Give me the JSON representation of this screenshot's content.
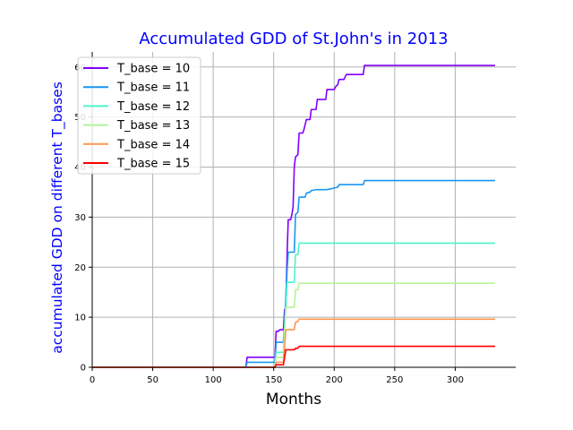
{
  "chart_data": {
    "type": "line",
    "title": "Accumulated GDD of St.John's in 2013",
    "xlabel": "Months",
    "ylabel": "accumulated GDD on different T_bases",
    "xlim": [
      0,
      350
    ],
    "ylim": [
      0,
      63
    ],
    "xticks": [
      0,
      50,
      100,
      150,
      200,
      250,
      300
    ],
    "yticks": [
      0,
      10,
      20,
      30,
      40,
      50,
      60
    ],
    "grid": true,
    "legend_position": "upper-left",
    "series": [
      {
        "name": "T_base = 10",
        "color": "#8000ff",
        "points": [
          [
            0,
            0
          ],
          [
            127,
            0
          ],
          [
            128,
            2.0
          ],
          [
            151,
            2.0
          ],
          [
            152,
            7.2
          ],
          [
            154,
            7.2
          ],
          [
            155,
            7.5
          ],
          [
            158,
            7.5
          ],
          [
            159,
            11.5
          ],
          [
            160,
            12.0
          ],
          [
            161,
            22.0
          ],
          [
            162,
            29.5
          ],
          [
            164,
            29.5
          ],
          [
            165,
            30.5
          ],
          [
            166,
            32.0
          ],
          [
            167,
            40.0
          ],
          [
            168,
            42.0
          ],
          [
            170,
            42.5
          ],
          [
            171,
            46.8
          ],
          [
            174,
            46.8
          ],
          [
            175,
            47.5
          ],
          [
            177,
            49.5
          ],
          [
            180,
            49.5
          ],
          [
            181,
            51.5
          ],
          [
            185,
            51.5
          ],
          [
            186,
            53.5
          ],
          [
            193,
            53.5
          ],
          [
            194,
            55.5
          ],
          [
            200,
            55.5
          ],
          [
            201,
            56.0
          ],
          [
            203,
            56.5
          ],
          [
            204,
            57.5
          ],
          [
            208,
            57.5
          ],
          [
            209,
            58.0
          ],
          [
            210,
            58.5
          ],
          [
            224,
            58.5
          ],
          [
            225,
            60.3
          ],
          [
            333,
            60.3
          ]
        ]
      },
      {
        "name": "T_base = 11",
        "color": "#1996f3",
        "points": [
          [
            0,
            0
          ],
          [
            127,
            0
          ],
          [
            128,
            1.0
          ],
          [
            151,
            1.0
          ],
          [
            152,
            5.0
          ],
          [
            158,
            5.0
          ],
          [
            159,
            9.0
          ],
          [
            160,
            14.0
          ],
          [
            161,
            19.0
          ],
          [
            162,
            23.0
          ],
          [
            167,
            23.0
          ],
          [
            168,
            30.5
          ],
          [
            170,
            31.0
          ],
          [
            171,
            34.0
          ],
          [
            176,
            34.0
          ],
          [
            177,
            34.8
          ],
          [
            180,
            35.0
          ],
          [
            181,
            35.3
          ],
          [
            185,
            35.5
          ],
          [
            194,
            35.5
          ],
          [
            198,
            35.7
          ],
          [
            203,
            36.0
          ],
          [
            204,
            36.5
          ],
          [
            224,
            36.5
          ],
          [
            225,
            37.3
          ],
          [
            333,
            37.3
          ]
        ]
      },
      {
        "name": "T_base = 12",
        "color": "#4df3ce",
        "points": [
          [
            0,
            0
          ],
          [
            151,
            0
          ],
          [
            152,
            3.0
          ],
          [
            158,
            3.0
          ],
          [
            159,
            8.0
          ],
          [
            160,
            12.0
          ],
          [
            161,
            17.0
          ],
          [
            167,
            17.0
          ],
          [
            168,
            22.5
          ],
          [
            170,
            22.5
          ],
          [
            171,
            24.8
          ],
          [
            333,
            24.8
          ]
        ]
      },
      {
        "name": "T_base = 13",
        "color": "#b3f396",
        "points": [
          [
            0,
            0
          ],
          [
            151,
            0
          ],
          [
            152,
            2.0
          ],
          [
            158,
            2.0
          ],
          [
            159,
            7.0
          ],
          [
            160,
            12.0
          ],
          [
            167,
            12.0
          ],
          [
            168,
            15.5
          ],
          [
            170,
            15.5
          ],
          [
            171,
            16.8
          ],
          [
            333,
            16.8
          ]
        ]
      },
      {
        "name": "T_base = 14",
        "color": "#ff964f",
        "points": [
          [
            0,
            0
          ],
          [
            151,
            0
          ],
          [
            152,
            1.0
          ],
          [
            158,
            1.0
          ],
          [
            159,
            4.0
          ],
          [
            160,
            7.5
          ],
          [
            167,
            7.5
          ],
          [
            168,
            9.0
          ],
          [
            170,
            9.2
          ],
          [
            171,
            9.6
          ],
          [
            333,
            9.6
          ]
        ]
      },
      {
        "name": "T_base = 15",
        "color": "#ff0000",
        "points": [
          [
            0,
            0
          ],
          [
            151,
            0
          ],
          [
            152,
            0.5
          ],
          [
            158,
            0.5
          ],
          [
            159,
            2.0
          ],
          [
            160,
            3.5
          ],
          [
            167,
            3.5
          ],
          [
            168,
            3.8
          ],
          [
            170,
            3.8
          ],
          [
            171,
            4.2
          ],
          [
            333,
            4.2
          ]
        ]
      }
    ]
  }
}
